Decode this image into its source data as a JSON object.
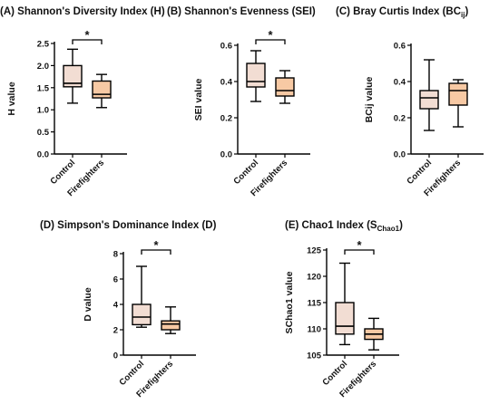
{
  "figure": {
    "panels": [
      {
        "title_main": "(A) Shannon's Diversity Index (H)",
        "title_sub": ""
      },
      {
        "title_main": "(B) Shannon's Evenness (SEI)",
        "title_sub": ""
      },
      {
        "title_main": "(C) Bray Curtis Index (BC",
        "title_sub": "ij",
        "title_close": ")"
      },
      {
        "title_main": "(D) Simpson's Dominance Index (D)",
        "title_sub": ""
      },
      {
        "title_main": "(E) Chao1 Index (S",
        "title_sub": "Chao1",
        "title_close": ")"
      }
    ]
  },
  "chart_data": [
    {
      "type": "box",
      "title": "(A) Shannon's Diversity Index (H)",
      "ylabel": "H value",
      "ylim": [
        0,
        2.5
      ],
      "yticks": [
        "0.0",
        "0.5",
        "1.0",
        "1.5",
        "2.0",
        "2.5"
      ],
      "yticks_values": [
        0,
        0.5,
        1.0,
        1.5,
        2.0,
        2.5
      ],
      "categories": [
        "Control",
        "Firefighters"
      ],
      "boxes": [
        {
          "name": "Control",
          "min": 1.15,
          "q1": 1.52,
          "median": 1.6,
          "q3": 2.0,
          "max": 2.37,
          "color": "#f2ddd3"
        },
        {
          "name": "Firefighters",
          "min": 1.05,
          "q1": 1.27,
          "median": 1.35,
          "q3": 1.65,
          "max": 1.8,
          "color": "#f7c9a4"
        }
      ],
      "significance": "*"
    },
    {
      "type": "box",
      "title": "(B) Shannon's Evenness (SEI)",
      "ylabel": "SEI value",
      "ylim": [
        0,
        0.6
      ],
      "yticks": [
        "0.0",
        "0.2",
        "0.4",
        "0.6"
      ],
      "yticks_values": [
        0,
        0.2,
        0.4,
        0.6
      ],
      "categories": [
        "Control",
        "Firefighters"
      ],
      "boxes": [
        {
          "name": "Control",
          "min": 0.29,
          "q1": 0.37,
          "median": 0.4,
          "q3": 0.5,
          "max": 0.57,
          "color": "#f2ddd3"
        },
        {
          "name": "Firefighters",
          "min": 0.28,
          "q1": 0.32,
          "median": 0.35,
          "q3": 0.42,
          "max": 0.46,
          "color": "#f7c9a4"
        }
      ],
      "significance": "*"
    },
    {
      "type": "box",
      "title": "(C) Bray Curtis Index (BCij)",
      "ylabel": "BCij value",
      "ylim": [
        0,
        0.6
      ],
      "yticks": [
        "0.0",
        "0.2",
        "0.4",
        "0.6"
      ],
      "yticks_values": [
        0,
        0.2,
        0.4,
        0.6
      ],
      "categories": [
        "Control",
        "Firefighters"
      ],
      "boxes": [
        {
          "name": "Control",
          "min": 0.13,
          "q1": 0.25,
          "median": 0.31,
          "q3": 0.35,
          "max": 0.52,
          "color": "#f2ddd3"
        },
        {
          "name": "Firefighters",
          "min": 0.15,
          "q1": 0.27,
          "median": 0.35,
          "q3": 0.39,
          "max": 0.41,
          "color": "#f7c9a4"
        }
      ],
      "significance": ""
    },
    {
      "type": "box",
      "title": "(D) Simpson's Dominance Index (D)",
      "ylabel": "D value",
      "ylim": [
        0,
        8
      ],
      "yticks": [
        "0",
        "2",
        "4",
        "6",
        "8"
      ],
      "yticks_values": [
        0,
        2,
        4,
        6,
        8
      ],
      "categories": [
        "Control",
        "Firefighters"
      ],
      "boxes": [
        {
          "name": "Control",
          "min": 2.2,
          "q1": 2.4,
          "median": 3.0,
          "q3": 4.0,
          "max": 7.0,
          "color": "#f2ddd3"
        },
        {
          "name": "Firefighters",
          "min": 1.7,
          "q1": 2.0,
          "median": 2.45,
          "q3": 2.7,
          "max": 3.8,
          "color": "#f7c9a4"
        }
      ],
      "significance": "*"
    },
    {
      "type": "box",
      "title": "(E) Chao1 Index (SChao1)",
      "ylabel": "SChao1 value",
      "ylim": [
        105,
        125
      ],
      "yticks": [
        "105",
        "110",
        "115",
        "120",
        "125"
      ],
      "yticks_values": [
        105,
        110,
        115,
        120,
        125
      ],
      "categories": [
        "Control",
        "Firefighters"
      ],
      "boxes": [
        {
          "name": "Control",
          "min": 107,
          "q1": 109,
          "median": 110.5,
          "q3": 115,
          "max": 122.5,
          "color": "#f2ddd3"
        },
        {
          "name": "Firefighters",
          "min": 106,
          "q1": 108,
          "median": 109,
          "q3": 110,
          "max": 112,
          "color": "#f7c9a4"
        }
      ],
      "significance": "*"
    }
  ]
}
